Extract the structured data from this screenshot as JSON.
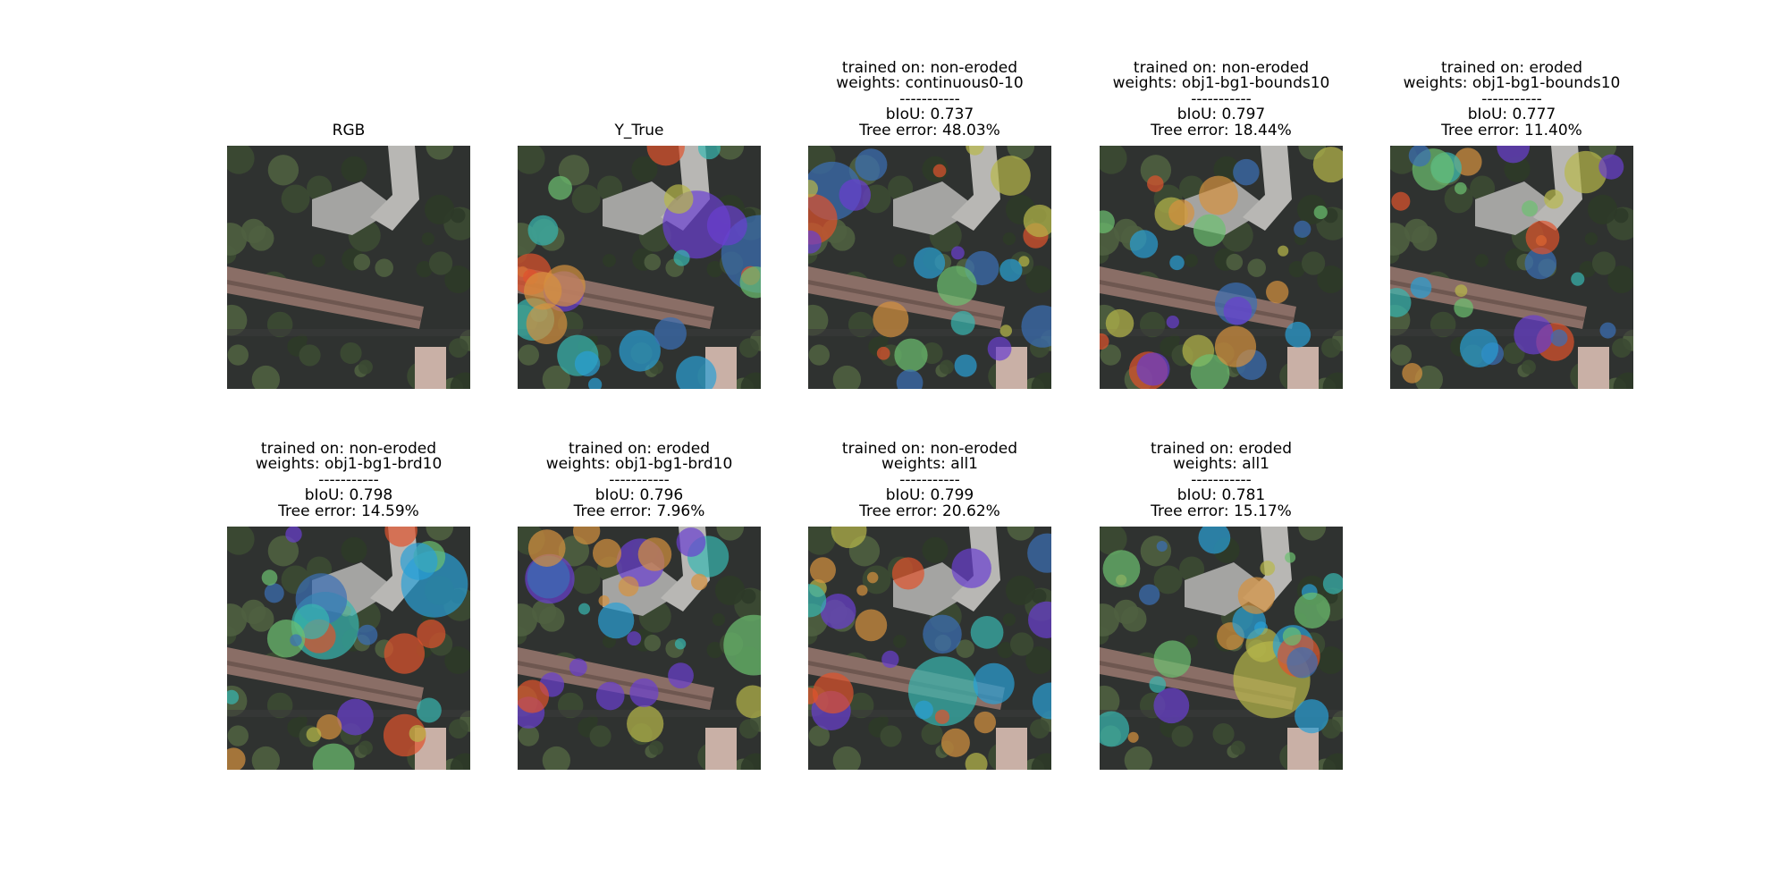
{
  "panels": [
    {
      "title": [
        "RGB"
      ]
    },
    {
      "title": [
        "Y_True"
      ]
    },
    {
      "title": [
        "trained on: non-eroded",
        "weights: continuous0-10",
        "-----------",
        "bIoU: 0.737",
        "Tree error: 48.03%"
      ]
    },
    {
      "title": [
        "trained on: non-eroded",
        "weights: obj1-bg1-bounds10",
        "-----------",
        "bIoU: 0.797",
        "Tree error: 18.44%"
      ]
    },
    {
      "title": [
        "trained on: eroded",
        "weights: obj1-bg1-bounds10",
        "-----------",
        "bIoU: 0.777",
        "Tree error: 11.40%"
      ]
    },
    {
      "title": [
        "trained on: non-eroded",
        "weights: obj1-bg1-brd10",
        "-----------",
        "bIoU: 0.798",
        "Tree error: 14.59%"
      ]
    },
    {
      "title": [
        "trained on: eroded",
        "weights: obj1-bg1-brd10",
        "-----------",
        "bIoU: 0.796",
        "Tree error: 7.96%"
      ]
    },
    {
      "title": [
        "trained on: non-eroded",
        "weights: all1",
        "-----------",
        "bIoU: 0.799",
        "Tree error: 20.62%"
      ]
    },
    {
      "title": [
        "trained on: eroded",
        "weights: all1",
        "-----------",
        "bIoU: 0.781",
        "Tree error: 15.17%"
      ]
    }
  ]
}
